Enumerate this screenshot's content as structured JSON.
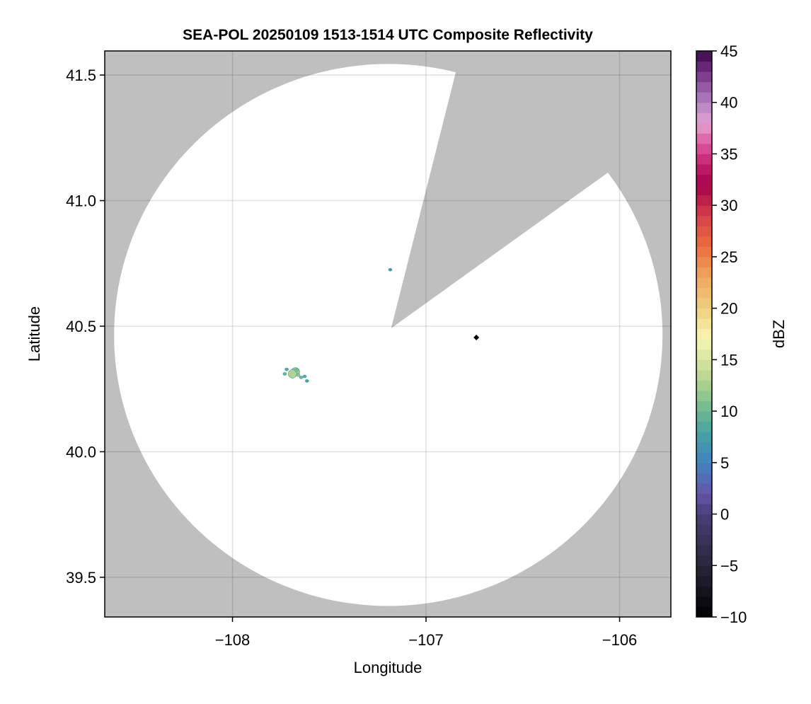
{
  "chart_data": {
    "type": "heatmap",
    "title": "SEA-POL 20250109 1513-1514 UTC Composite Reflectivity",
    "xlabel": "Longitude",
    "ylabel": "Latitude",
    "xlim": [
      -108.66,
      -105.735
    ],
    "ylim": [
      39.342,
      41.596
    ],
    "xticks": [
      -108,
      -107,
      -106
    ],
    "xtick_labels": [
      "−108",
      "−107",
      "−106"
    ],
    "yticks": [
      39.5,
      40.0,
      40.5,
      41.0,
      41.5
    ],
    "ytick_labels": [
      "39.5",
      "40.0",
      "40.5",
      "41.0",
      "41.5"
    ],
    "grid": true,
    "no_data_color": "#bfbfbf",
    "coverage": {
      "center_lon": -107.195,
      "center_lat": 40.465,
      "range_km": 120
    },
    "blocked_sector": {
      "apex_lon": -107.18,
      "apex_lat": 40.492,
      "azimuth_start_deg": 14,
      "azimuth_end_deg": 54
    },
    "echoes": [
      {
        "lon": -107.675,
        "lat": 40.318,
        "dbz": 12
      },
      {
        "lon": -107.69,
        "lat": 40.31,
        "dbz": 13
      },
      {
        "lon": -107.66,
        "lat": 40.305,
        "dbz": 12
      },
      {
        "lon": -107.67,
        "lat": 40.325,
        "dbz": 11
      },
      {
        "lon": -107.72,
        "lat": 40.328,
        "dbz": 9
      },
      {
        "lon": -107.645,
        "lat": 40.296,
        "dbz": 10
      },
      {
        "lon": -107.627,
        "lat": 40.3,
        "dbz": 9
      },
      {
        "lon": -107.73,
        "lat": 40.31,
        "dbz": 10
      },
      {
        "lon": -107.615,
        "lat": 40.282,
        "dbz": 8
      },
      {
        "lon": -107.185,
        "lat": 40.725,
        "dbz": 8
      }
    ],
    "marker": {
      "lon": -106.74,
      "lat": 40.455,
      "shape": "diamond",
      "color": "#000000"
    },
    "colorbar": {
      "label": "dBZ",
      "range": [
        -10,
        45
      ],
      "step": 1,
      "ticks": [
        -10,
        -5,
        0,
        5,
        10,
        15,
        20,
        25,
        30,
        35,
        40,
        45
      ],
      "tick_labels": [
        "−10",
        "−5",
        "0",
        "5",
        "10",
        "15",
        "20",
        "25",
        "30",
        "35",
        "40",
        "45"
      ],
      "color_stops": [
        [
          -10,
          "#000000"
        ],
        [
          -5,
          "#29253a"
        ],
        [
          0,
          "#4a3f78"
        ],
        [
          2,
          "#6654a8"
        ],
        [
          5,
          "#3f84c2"
        ],
        [
          8,
          "#48a3a0"
        ],
        [
          10,
          "#6cb890"
        ],
        [
          13,
          "#b3d490"
        ],
        [
          17,
          "#f8f6b2"
        ],
        [
          20,
          "#efd080"
        ],
        [
          23,
          "#eea85e"
        ],
        [
          26,
          "#ec6c3e"
        ],
        [
          29,
          "#d6404a"
        ],
        [
          32,
          "#a8004a"
        ],
        [
          34,
          "#c42070"
        ],
        [
          36,
          "#de58a0"
        ],
        [
          38,
          "#e4a2d0"
        ],
        [
          40,
          "#b082c0"
        ],
        [
          42,
          "#8a4c9a"
        ],
        [
          44,
          "#5a1a6a"
        ],
        [
          45,
          "#3a0a48"
        ]
      ]
    }
  }
}
